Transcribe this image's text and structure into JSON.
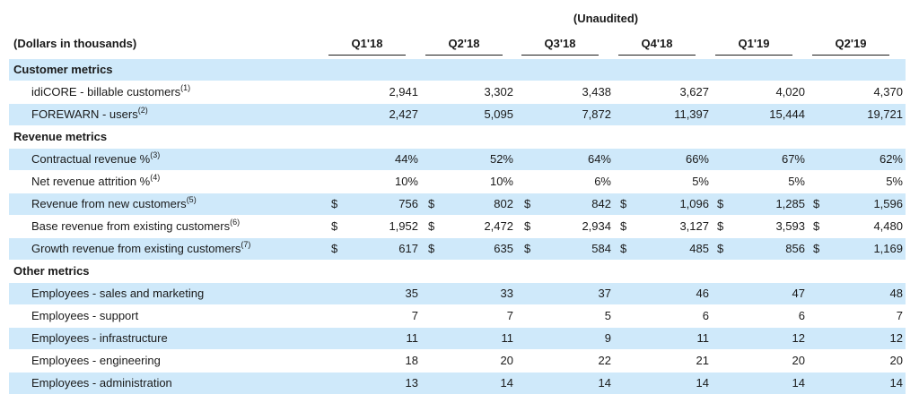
{
  "header": {
    "unaudited": "(Unaudited)",
    "unit_label": "(Dollars in thousands)",
    "columns": [
      "Q1'18",
      "Q2'18",
      "Q3'18",
      "Q4'18",
      "Q1'19",
      "Q2'19"
    ]
  },
  "sections": [
    {
      "title": "Customer metrics",
      "rows": [
        {
          "label": "idiCORE - billable customers",
          "note": "(1)",
          "currency": "",
          "values": [
            "2,941",
            "3,302",
            "3,438",
            "3,627",
            "4,020",
            "4,370"
          ]
        },
        {
          "label": "FOREWARN - users",
          "note": "(2)",
          "currency": "",
          "values": [
            "2,427",
            "5,095",
            "7,872",
            "11,397",
            "15,444",
            "19,721"
          ]
        }
      ]
    },
    {
      "title": "Revenue metrics",
      "rows": [
        {
          "label": "Contractual revenue %",
          "note": "(3)",
          "currency": "",
          "values": [
            "44%",
            "52%",
            "64%",
            "66%",
            "67%",
            "62%"
          ]
        },
        {
          "label": "Net revenue attrition %",
          "note": "(4)",
          "currency": "",
          "values": [
            "10%",
            "10%",
            "6%",
            "5%",
            "5%",
            "5%"
          ]
        },
        {
          "label": "Revenue from new customers",
          "note": "(5)",
          "currency": "$",
          "values": [
            "756",
            "802",
            "842",
            "1,096",
            "1,285",
            "1,596"
          ]
        },
        {
          "label": "Base revenue from existing customers",
          "note": "(6)",
          "currency": "$",
          "values": [
            "1,952",
            "2,472",
            "2,934",
            "3,127",
            "3,593",
            "4,480"
          ]
        },
        {
          "label": "Growth revenue from existing customers",
          "note": "(7)",
          "currency": "$",
          "values": [
            "617",
            "635",
            "584",
            "485",
            "856",
            "1,169"
          ]
        }
      ]
    },
    {
      "title": "Other metrics",
      "rows": [
        {
          "label": "Employees - sales and marketing",
          "note": "",
          "currency": "",
          "values": [
            "35",
            "33",
            "37",
            "46",
            "47",
            "48"
          ]
        },
        {
          "label": "Employees - support",
          "note": "",
          "currency": "",
          "values": [
            "7",
            "7",
            "5",
            "6",
            "6",
            "7"
          ]
        },
        {
          "label": "Employees - infrastructure",
          "note": "",
          "currency": "",
          "values": [
            "11",
            "11",
            "9",
            "11",
            "12",
            "12"
          ]
        },
        {
          "label": "Employees - engineering",
          "note": "",
          "currency": "",
          "values": [
            "18",
            "20",
            "22",
            "21",
            "20",
            "20"
          ]
        },
        {
          "label": "Employees - administration",
          "note": "",
          "currency": "",
          "values": [
            "13",
            "14",
            "14",
            "14",
            "14",
            "14"
          ]
        }
      ]
    }
  ]
}
